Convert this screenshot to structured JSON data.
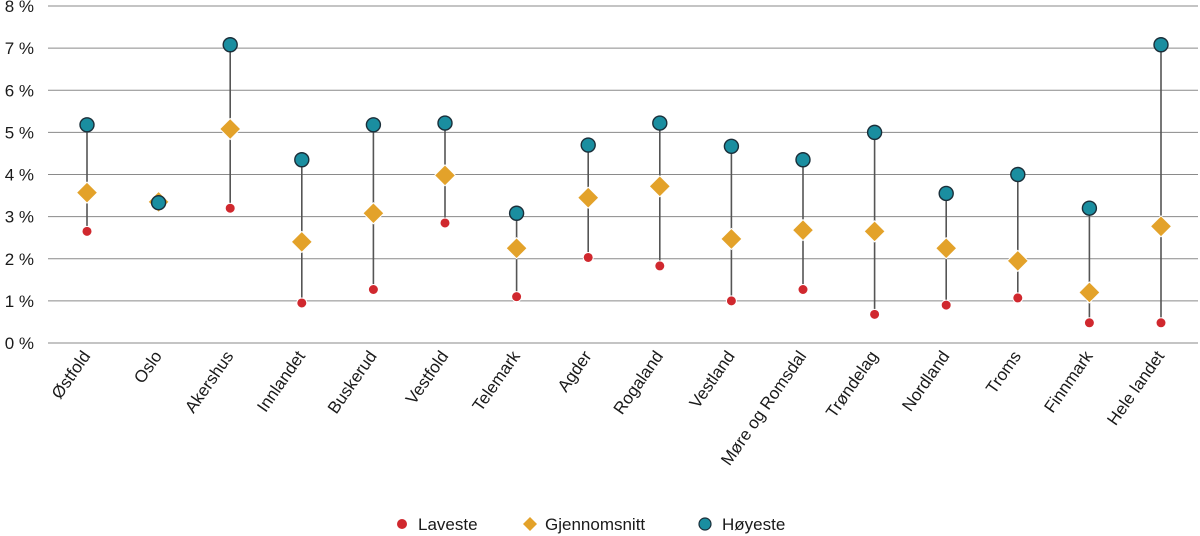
{
  "chart_data": {
    "type": "scatter",
    "categories": [
      "Østfold",
      "Oslo",
      "Akershus",
      "Innlandet",
      "Buskerud",
      "Vestfold",
      "Telemark",
      "Agder",
      "Rogaland",
      "Vestland",
      "Møre og Romsdal",
      "Trøndelag",
      "Nordland",
      "Troms",
      "Finnmark",
      "Hele landet"
    ],
    "series": [
      {
        "name": "Laveste",
        "marker": "circle",
        "color": "#d0282e",
        "values": [
          2.65,
          3.35,
          3.2,
          0.95,
          1.27,
          2.85,
          1.1,
          2.03,
          1.83,
          1.0,
          1.27,
          0.68,
          0.9,
          1.07,
          0.48,
          0.48
        ]
      },
      {
        "name": "Gjennomsnitt",
        "marker": "diamond",
        "color": "#e3a22a",
        "values": [
          3.57,
          3.35,
          5.08,
          2.4,
          3.08,
          3.98,
          2.25,
          3.45,
          3.72,
          2.47,
          2.68,
          2.65,
          2.25,
          1.95,
          1.2,
          2.77
        ]
      },
      {
        "name": "Høyeste",
        "marker": "circle",
        "color": "#1a8ea0",
        "values": [
          5.18,
          3.33,
          7.08,
          4.35,
          5.18,
          5.22,
          3.08,
          4.7,
          5.22,
          4.67,
          4.35,
          5.0,
          3.55,
          4.0,
          3.2,
          7.08
        ]
      }
    ],
    "yticks": [
      "0 %",
      "1 %",
      "2 %",
      "3 %",
      "4 %",
      "5 %",
      "6 %",
      "7 %",
      "8 %"
    ],
    "ylim": [
      0,
      8
    ],
    "grid": true,
    "legend_position": "bottom-center",
    "range_line_color": "#555555",
    "grid_color": "#8a8a8a"
  }
}
